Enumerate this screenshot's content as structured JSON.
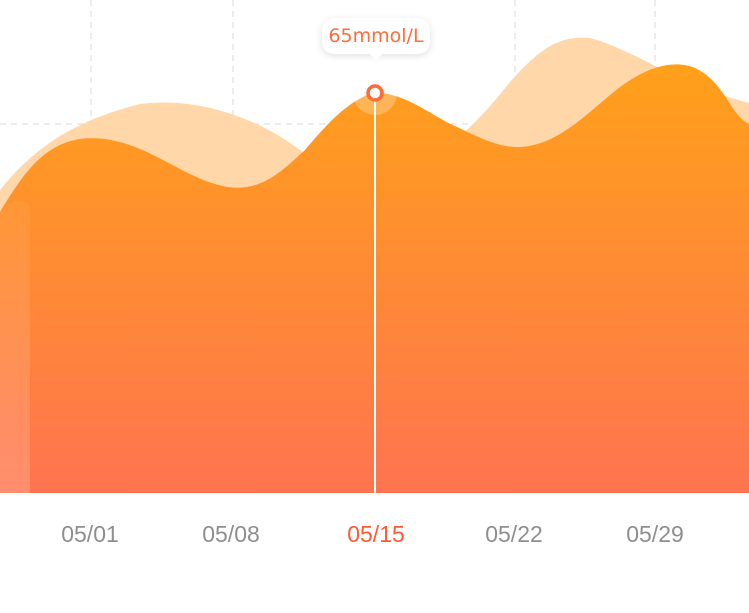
{
  "colors": {
    "main_top": "#ffa01a",
    "main_bottom": "#ff7450",
    "back_area": "#ffd7a8",
    "grid": "#d9d9d9",
    "tick_label": "#8e8e8e",
    "tick_active": "#ff5a35",
    "cursor_line": "#ffffff",
    "marker": "#ff6a3a"
  },
  "tooltip": {
    "text": "65mmol/L"
  },
  "chart_data": {
    "type": "area",
    "categories": [
      "05/01",
      "05/08",
      "05/15",
      "05/22",
      "05/29"
    ],
    "active_category": "05/15",
    "active_value": 65,
    "grid": true,
    "legend": "none"
  }
}
